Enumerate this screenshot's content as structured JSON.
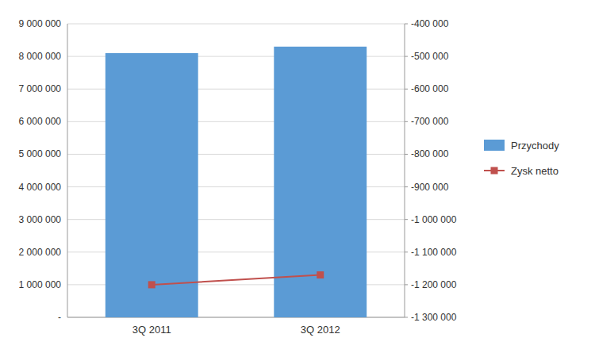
{
  "chart_data": {
    "type": "bar",
    "categories": [
      "3Q 2011",
      "3Q 2012"
    ],
    "series": [
      {
        "name": "Przychody",
        "type": "bar",
        "color": "#5B9BD5",
        "values": [
          8100000,
          8300000
        ]
      },
      {
        "name": "Zysk netto",
        "type": "line",
        "axis": "y2",
        "color": "#C0504D",
        "marker": "square",
        "values": [
          -1200000,
          -1170000
        ]
      }
    ],
    "ylim": [
      0,
      9000000
    ],
    "yticks": [
      {
        "value": 0,
        "label": "-"
      },
      {
        "value": 1000000,
        "label": "1 000 000"
      },
      {
        "value": 2000000,
        "label": "2 000 000"
      },
      {
        "value": 3000000,
        "label": "3 000 000"
      },
      {
        "value": 4000000,
        "label": "4 000 000"
      },
      {
        "value": 5000000,
        "label": "5 000 000"
      },
      {
        "value": 6000000,
        "label": "6 000 000"
      },
      {
        "value": 7000000,
        "label": "7 000 000"
      },
      {
        "value": 8000000,
        "label": "8 000 000"
      },
      {
        "value": 9000000,
        "label": "9 000 000"
      }
    ],
    "y2lim": [
      -1300000,
      -400000
    ],
    "y2ticks": [
      {
        "value": -1300000,
        "label": "-1 300 000"
      },
      {
        "value": -1200000,
        "label": "-1 200 000"
      },
      {
        "value": -1100000,
        "label": "-1 100 000"
      },
      {
        "value": -1000000,
        "label": "-1 000 000"
      },
      {
        "value": -900000,
        "label": "-900 000"
      },
      {
        "value": -800000,
        "label": "-800 000"
      },
      {
        "value": -700000,
        "label": "-700 000"
      },
      {
        "value": -600000,
        "label": "-600 000"
      },
      {
        "value": -500000,
        "label": "-500 000"
      },
      {
        "value": -400000,
        "label": "-400 000"
      }
    ],
    "grid": true,
    "legend": "right"
  }
}
